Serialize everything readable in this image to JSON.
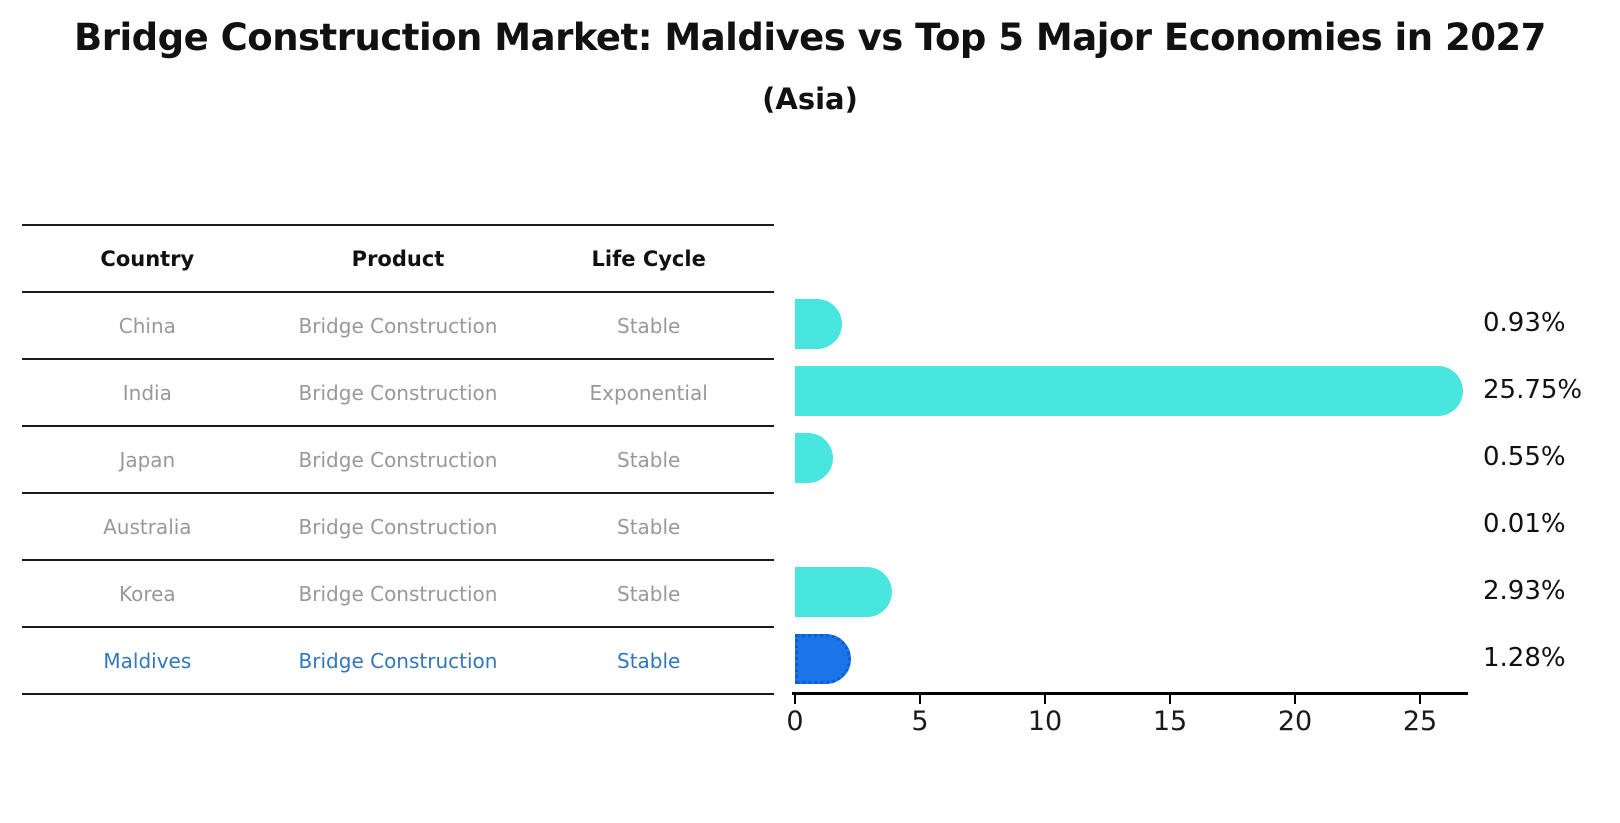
{
  "title": "Bridge Construction Market: Maldives vs Top 5 Major Economies in 2027",
  "subtitle": "(Asia)",
  "table": {
    "headers": [
      "Country",
      "Product",
      "Life Cycle"
    ],
    "rows": [
      {
        "country": "China",
        "product": "Bridge Construction",
        "life_cycle": "Stable",
        "highlight": false
      },
      {
        "country": "India",
        "product": "Bridge Construction",
        "life_cycle": "Exponential",
        "highlight": false
      },
      {
        "country": "Japan",
        "product": "Bridge Construction",
        "life_cycle": "Stable",
        "highlight": false
      },
      {
        "country": "Australia",
        "product": "Bridge Construction",
        "life_cycle": "Stable",
        "highlight": false
      },
      {
        "country": "Korea",
        "product": "Bridge Construction",
        "life_cycle": "Stable",
        "highlight": false
      },
      {
        "country": "Maldives",
        "product": "Bridge Construction",
        "life_cycle": "Stable",
        "highlight": true
      }
    ]
  },
  "chart_data": {
    "type": "bar",
    "orientation": "horizontal",
    "title": "Bridge Construction Market: Maldives vs Top 5 Major Economies in 2027",
    "subtitle": "(Asia)",
    "categories": [
      "China",
      "India",
      "Japan",
      "Australia",
      "Korea",
      "Maldives"
    ],
    "values": [
      0.93,
      25.75,
      0.55,
      0.01,
      2.93,
      1.28
    ],
    "value_labels": [
      "0.93%",
      "25.75%",
      "0.55%",
      "0.01%",
      "2.93%",
      "1.28%"
    ],
    "unit": "percent",
    "x_ticks": [
      0,
      5,
      10,
      15,
      20,
      25
    ],
    "xlim": [
      0,
      27
    ],
    "grid": false,
    "legend": false,
    "highlight_index": 5,
    "bar_color": "#48e6de",
    "highlight_bar_color": "#1b74e8",
    "highlight_text_color": "#3377bb"
  },
  "colors": {
    "background": "#ffffff",
    "title_text": "#111111",
    "table_line": "#1a1a1a",
    "table_row_text": "#999999",
    "bar_default": "#48e6de",
    "bar_highlight": "#1b74e8",
    "highlight_border": "#0d5ed6",
    "highlight_text": "#3377bb"
  }
}
